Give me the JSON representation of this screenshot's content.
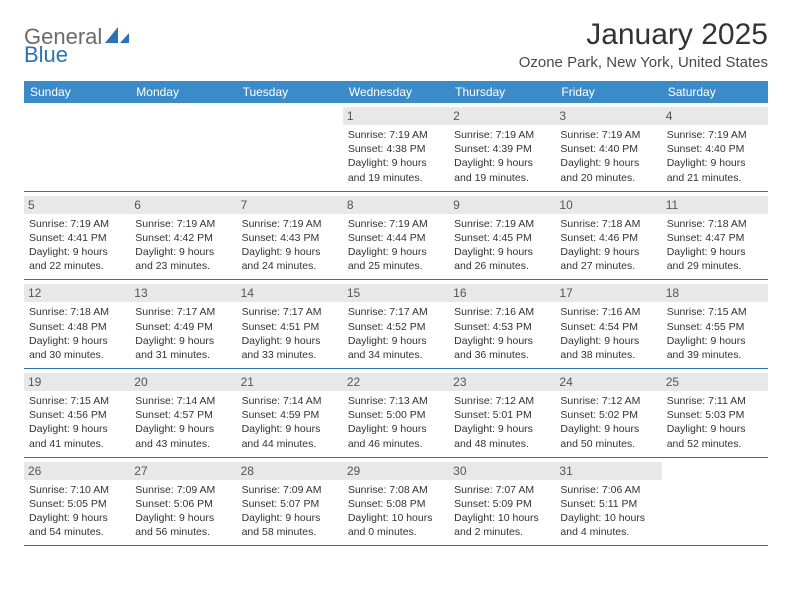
{
  "logo": {
    "text1": "General",
    "text2": "Blue"
  },
  "title": "January 2025",
  "location": "Ozone Park, New York, United States",
  "headers": [
    "Sunday",
    "Monday",
    "Tuesday",
    "Wednesday",
    "Thursday",
    "Friday",
    "Saturday"
  ],
  "colors": {
    "header_bg": "#3b8bc8",
    "header_text": "#ffffff",
    "daynum_bg": "#e8e8e8",
    "border": "#2a72b5",
    "logo_gray": "#6b6b6b",
    "logo_blue": "#2a72b5"
  },
  "weeks": [
    [
      {
        "empty": true
      },
      {
        "empty": true
      },
      {
        "empty": true
      },
      {
        "day": "1",
        "sunrise": "Sunrise: 7:19 AM",
        "sunset": "Sunset: 4:38 PM",
        "dl1": "Daylight: 9 hours",
        "dl2": "and 19 minutes."
      },
      {
        "day": "2",
        "sunrise": "Sunrise: 7:19 AM",
        "sunset": "Sunset: 4:39 PM",
        "dl1": "Daylight: 9 hours",
        "dl2": "and 19 minutes."
      },
      {
        "day": "3",
        "sunrise": "Sunrise: 7:19 AM",
        "sunset": "Sunset: 4:40 PM",
        "dl1": "Daylight: 9 hours",
        "dl2": "and 20 minutes."
      },
      {
        "day": "4",
        "sunrise": "Sunrise: 7:19 AM",
        "sunset": "Sunset: 4:40 PM",
        "dl1": "Daylight: 9 hours",
        "dl2": "and 21 minutes."
      }
    ],
    [
      {
        "day": "5",
        "sunrise": "Sunrise: 7:19 AM",
        "sunset": "Sunset: 4:41 PM",
        "dl1": "Daylight: 9 hours",
        "dl2": "and 22 minutes."
      },
      {
        "day": "6",
        "sunrise": "Sunrise: 7:19 AM",
        "sunset": "Sunset: 4:42 PM",
        "dl1": "Daylight: 9 hours",
        "dl2": "and 23 minutes."
      },
      {
        "day": "7",
        "sunrise": "Sunrise: 7:19 AM",
        "sunset": "Sunset: 4:43 PM",
        "dl1": "Daylight: 9 hours",
        "dl2": "and 24 minutes."
      },
      {
        "day": "8",
        "sunrise": "Sunrise: 7:19 AM",
        "sunset": "Sunset: 4:44 PM",
        "dl1": "Daylight: 9 hours",
        "dl2": "and 25 minutes."
      },
      {
        "day": "9",
        "sunrise": "Sunrise: 7:19 AM",
        "sunset": "Sunset: 4:45 PM",
        "dl1": "Daylight: 9 hours",
        "dl2": "and 26 minutes."
      },
      {
        "day": "10",
        "sunrise": "Sunrise: 7:18 AM",
        "sunset": "Sunset: 4:46 PM",
        "dl1": "Daylight: 9 hours",
        "dl2": "and 27 minutes."
      },
      {
        "day": "11",
        "sunrise": "Sunrise: 7:18 AM",
        "sunset": "Sunset: 4:47 PM",
        "dl1": "Daylight: 9 hours",
        "dl2": "and 29 minutes."
      }
    ],
    [
      {
        "day": "12",
        "sunrise": "Sunrise: 7:18 AM",
        "sunset": "Sunset: 4:48 PM",
        "dl1": "Daylight: 9 hours",
        "dl2": "and 30 minutes."
      },
      {
        "day": "13",
        "sunrise": "Sunrise: 7:17 AM",
        "sunset": "Sunset: 4:49 PM",
        "dl1": "Daylight: 9 hours",
        "dl2": "and 31 minutes."
      },
      {
        "day": "14",
        "sunrise": "Sunrise: 7:17 AM",
        "sunset": "Sunset: 4:51 PM",
        "dl1": "Daylight: 9 hours",
        "dl2": "and 33 minutes."
      },
      {
        "day": "15",
        "sunrise": "Sunrise: 7:17 AM",
        "sunset": "Sunset: 4:52 PM",
        "dl1": "Daylight: 9 hours",
        "dl2": "and 34 minutes."
      },
      {
        "day": "16",
        "sunrise": "Sunrise: 7:16 AM",
        "sunset": "Sunset: 4:53 PM",
        "dl1": "Daylight: 9 hours",
        "dl2": "and 36 minutes."
      },
      {
        "day": "17",
        "sunrise": "Sunrise: 7:16 AM",
        "sunset": "Sunset: 4:54 PM",
        "dl1": "Daylight: 9 hours",
        "dl2": "and 38 minutes."
      },
      {
        "day": "18",
        "sunrise": "Sunrise: 7:15 AM",
        "sunset": "Sunset: 4:55 PM",
        "dl1": "Daylight: 9 hours",
        "dl2": "and 39 minutes."
      }
    ],
    [
      {
        "day": "19",
        "sunrise": "Sunrise: 7:15 AM",
        "sunset": "Sunset: 4:56 PM",
        "dl1": "Daylight: 9 hours",
        "dl2": "and 41 minutes."
      },
      {
        "day": "20",
        "sunrise": "Sunrise: 7:14 AM",
        "sunset": "Sunset: 4:57 PM",
        "dl1": "Daylight: 9 hours",
        "dl2": "and 43 minutes."
      },
      {
        "day": "21",
        "sunrise": "Sunrise: 7:14 AM",
        "sunset": "Sunset: 4:59 PM",
        "dl1": "Daylight: 9 hours",
        "dl2": "and 44 minutes."
      },
      {
        "day": "22",
        "sunrise": "Sunrise: 7:13 AM",
        "sunset": "Sunset: 5:00 PM",
        "dl1": "Daylight: 9 hours",
        "dl2": "and 46 minutes."
      },
      {
        "day": "23",
        "sunrise": "Sunrise: 7:12 AM",
        "sunset": "Sunset: 5:01 PM",
        "dl1": "Daylight: 9 hours",
        "dl2": "and 48 minutes."
      },
      {
        "day": "24",
        "sunrise": "Sunrise: 7:12 AM",
        "sunset": "Sunset: 5:02 PM",
        "dl1": "Daylight: 9 hours",
        "dl2": "and 50 minutes."
      },
      {
        "day": "25",
        "sunrise": "Sunrise: 7:11 AM",
        "sunset": "Sunset: 5:03 PM",
        "dl1": "Daylight: 9 hours",
        "dl2": "and 52 minutes."
      }
    ],
    [
      {
        "day": "26",
        "sunrise": "Sunrise: 7:10 AM",
        "sunset": "Sunset: 5:05 PM",
        "dl1": "Daylight: 9 hours",
        "dl2": "and 54 minutes."
      },
      {
        "day": "27",
        "sunrise": "Sunrise: 7:09 AM",
        "sunset": "Sunset: 5:06 PM",
        "dl1": "Daylight: 9 hours",
        "dl2": "and 56 minutes."
      },
      {
        "day": "28",
        "sunrise": "Sunrise: 7:09 AM",
        "sunset": "Sunset: 5:07 PM",
        "dl1": "Daylight: 9 hours",
        "dl2": "and 58 minutes."
      },
      {
        "day": "29",
        "sunrise": "Sunrise: 7:08 AM",
        "sunset": "Sunset: 5:08 PM",
        "dl1": "Daylight: 10 hours",
        "dl2": "and 0 minutes."
      },
      {
        "day": "30",
        "sunrise": "Sunrise: 7:07 AM",
        "sunset": "Sunset: 5:09 PM",
        "dl1": "Daylight: 10 hours",
        "dl2": "and 2 minutes."
      },
      {
        "day": "31",
        "sunrise": "Sunrise: 7:06 AM",
        "sunset": "Sunset: 5:11 PM",
        "dl1": "Daylight: 10 hours",
        "dl2": "and 4 minutes."
      },
      {
        "empty": true
      }
    ]
  ]
}
